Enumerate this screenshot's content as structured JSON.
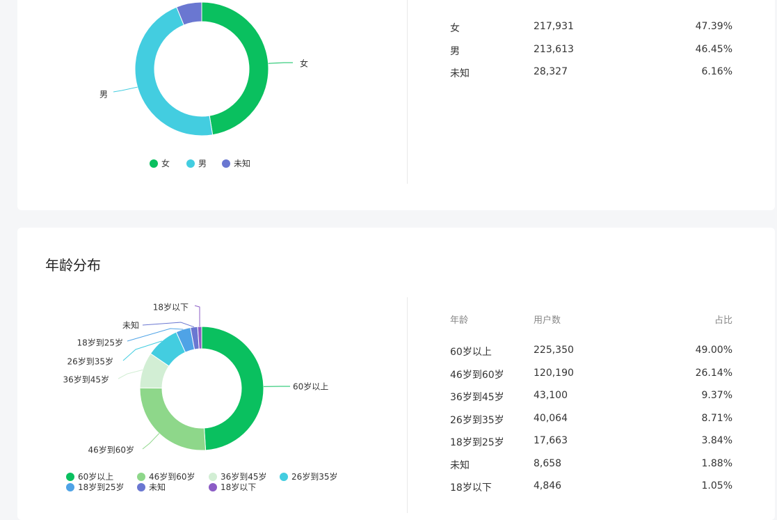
{
  "gender": {
    "colors": [
      "#0ac05f",
      "#43cde0",
      "#6a77d1"
    ],
    "rows": [
      {
        "label": "女",
        "count": "217,931",
        "pct": "47.39%"
      },
      {
        "label": "男",
        "count": "213,613",
        "pct": "46.45%"
      },
      {
        "label": "未知",
        "count": "28,327",
        "pct": "6.16%"
      }
    ],
    "legend": [
      "女",
      "男",
      "未知"
    ]
  },
  "age": {
    "title": "年龄分布",
    "headers": {
      "age": "年龄",
      "users": "用户数",
      "ratio": "占比"
    },
    "colors": [
      "#0ac05f",
      "#8ed78a",
      "#d2eed4",
      "#43cde0",
      "#4fa3e6",
      "#6a77d1",
      "#8b5cc5"
    ],
    "rows": [
      {
        "label": "60岁以上",
        "count": "225,350",
        "pct": "49.00%"
      },
      {
        "label": "46岁到60岁",
        "count": "120,190",
        "pct": "26.14%"
      },
      {
        "label": "36岁到45岁",
        "count": "43,100",
        "pct": "9.37%"
      },
      {
        "label": "26岁到35岁",
        "count": "40,064",
        "pct": "8.71%"
      },
      {
        "label": "18岁到25岁",
        "count": "17,663",
        "pct": "3.84%"
      },
      {
        "label": "未知",
        "count": "8,658",
        "pct": "1.88%"
      },
      {
        "label": "18岁以下",
        "count": "4,846",
        "pct": "1.05%"
      }
    ],
    "legend": [
      "60岁以上",
      "46岁到60岁",
      "36岁到45岁",
      "26岁到35岁",
      "18岁到25岁",
      "未知",
      "18岁以下"
    ]
  },
  "chart_data": [
    {
      "type": "pie",
      "categories": [
        "女",
        "男",
        "未知"
      ],
      "values": [
        47.39,
        46.45,
        6.16
      ],
      "counts": [
        217931,
        213613,
        28327
      ],
      "legend_position": "bottom",
      "donut": true
    },
    {
      "type": "pie",
      "title": "年龄分布",
      "categories": [
        "60岁以上",
        "46岁到60岁",
        "36岁到45岁",
        "26岁到35岁",
        "18岁到25岁",
        "未知",
        "18岁以下"
      ],
      "values": [
        49.0,
        26.14,
        9.37,
        8.71,
        3.84,
        1.88,
        1.05
      ],
      "counts": [
        225350,
        120190,
        43100,
        40064,
        17663,
        8658,
        4846
      ],
      "legend_position": "bottom",
      "donut": true
    }
  ]
}
